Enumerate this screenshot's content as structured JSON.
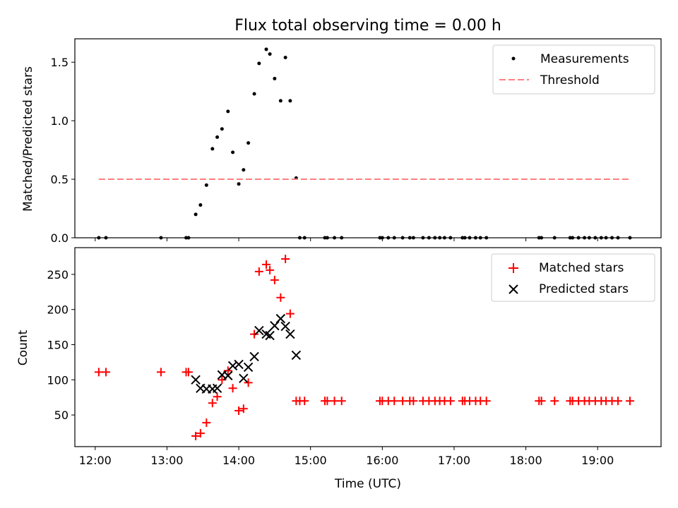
{
  "figure": {
    "title": "Flux total observing time = 0.00 h",
    "xlabel": "Time (UTC)"
  },
  "chart_data": [
    {
      "type": "scatter",
      "ylabel": "Matched/Predicted stars",
      "xlim": [
        "11:43",
        "19:53"
      ],
      "ylim": [
        0,
        1.7
      ],
      "yticks": [
        0.0,
        0.5,
        1.0,
        1.5
      ],
      "ytick_labels": [
        "0.0",
        "0.5",
        "1.0",
        "1.5"
      ],
      "grid": false,
      "legend": "top-right",
      "series": [
        {
          "name": "Measurements",
          "kind": "dots",
          "color": "#000000",
          "points": [
            [
              "12:03",
              0
            ],
            [
              "12:09",
              0
            ],
            [
              "12:55",
              0
            ],
            [
              "13:16",
              0
            ],
            [
              "13:18",
              0
            ],
            [
              "13:24",
              0.2
            ],
            [
              "13:28",
              0.28
            ],
            [
              "13:33",
              0.45
            ],
            [
              "13:38",
              0.76
            ],
            [
              "13:42",
              0.86
            ],
            [
              "13:46",
              0.93
            ],
            [
              "13:51",
              1.08
            ],
            [
              "13:55",
              0.73
            ],
            [
              "14:00",
              0.46
            ],
            [
              "14:04",
              0.58
            ],
            [
              "14:08",
              0.81
            ],
            [
              "14:13",
              1.23
            ],
            [
              "14:17",
              1.49
            ],
            [
              "14:23",
              1.61
            ],
            [
              "14:26",
              1.57
            ],
            [
              "14:30",
              1.36
            ],
            [
              "14:35",
              1.17
            ],
            [
              "14:39",
              1.54
            ],
            [
              "14:43",
              1.17
            ],
            [
              "14:48",
              0.51
            ],
            [
              "14:51",
              0
            ],
            [
              "14:55",
              0
            ],
            [
              "15:12",
              0
            ],
            [
              "15:14",
              0
            ],
            [
              "15:20",
              0
            ],
            [
              "15:26",
              0
            ],
            [
              "15:58",
              0
            ],
            [
              "16:00",
              0
            ],
            [
              "16:05",
              0
            ],
            [
              "16:10",
              0
            ],
            [
              "16:17",
              0
            ],
            [
              "16:23",
              0
            ],
            [
              "16:26",
              0
            ],
            [
              "16:34",
              0
            ],
            [
              "16:39",
              0
            ],
            [
              "16:44",
              0
            ],
            [
              "16:48",
              0
            ],
            [
              "16:52",
              0
            ],
            [
              "16:57",
              0
            ],
            [
              "17:07",
              0
            ],
            [
              "17:09",
              0
            ],
            [
              "17:13",
              0
            ],
            [
              "17:18",
              0
            ],
            [
              "17:22",
              0
            ],
            [
              "17:27",
              0
            ],
            [
              "18:11",
              0
            ],
            [
              "18:13",
              0
            ],
            [
              "18:24",
              0
            ],
            [
              "18:37",
              0
            ],
            [
              "18:39",
              0
            ],
            [
              "18:44",
              0
            ],
            [
              "18:49",
              0
            ],
            [
              "18:53",
              0
            ],
            [
              "18:58",
              0
            ],
            [
              "19:03",
              0
            ],
            [
              "19:07",
              0
            ],
            [
              "19:12",
              0
            ],
            [
              "19:17",
              0
            ],
            [
              "19:27",
              0
            ]
          ]
        },
        {
          "name": "Threshold",
          "kind": "dashed-line",
          "color": "#ff8080",
          "points": [
            [
              "12:03",
              0.5
            ],
            [
              "19:27",
              0.5
            ]
          ]
        }
      ]
    },
    {
      "type": "scatter",
      "ylabel": "Count",
      "xlim": [
        "11:43",
        "19:53"
      ],
      "ylim": [
        5,
        288
      ],
      "yticks": [
        50,
        100,
        150,
        200,
        250
      ],
      "ytick_labels": [
        "50",
        "100",
        "150",
        "200",
        "250"
      ],
      "xticks": [
        "12:00",
        "13:00",
        "14:00",
        "15:00",
        "16:00",
        "17:00",
        "18:00",
        "19:00"
      ],
      "xtick_labels": [
        "12:00",
        "13:00",
        "14:00",
        "15:00",
        "16:00",
        "17:00",
        "18:00",
        "19:00"
      ],
      "grid": false,
      "legend": "top-right",
      "series": [
        {
          "name": "Matched stars",
          "kind": "plus",
          "color": "#ff0000",
          "points": [
            [
              "12:03",
              111
            ],
            [
              "12:09",
              111
            ],
            [
              "12:55",
              111
            ],
            [
              "13:16",
              111
            ],
            [
              "13:18",
              111
            ],
            [
              "13:24",
              20
            ],
            [
              "13:28",
              24
            ],
            [
              "13:33",
              39
            ],
            [
              "13:38",
              67
            ],
            [
              "13:42",
              76
            ],
            [
              "13:46",
              100
            ],
            [
              "13:51",
              113
            ],
            [
              "13:55",
              88
            ],
            [
              "14:00",
              56
            ],
            [
              "14:04",
              59
            ],
            [
              "14:08",
              96
            ],
            [
              "14:13",
              165
            ],
            [
              "14:17",
              254
            ],
            [
              "14:23",
              264
            ],
            [
              "14:26",
              256
            ],
            [
              "14:30",
              242
            ],
            [
              "14:35",
              217
            ],
            [
              "14:39",
              272
            ],
            [
              "14:43",
              194
            ],
            [
              "14:48",
              70
            ],
            [
              "14:51",
              70
            ],
            [
              "14:55",
              70
            ],
            [
              "15:12",
              70
            ],
            [
              "15:14",
              70
            ],
            [
              "15:20",
              70
            ],
            [
              "15:26",
              70
            ],
            [
              "15:58",
              70
            ],
            [
              "16:00",
              70
            ],
            [
              "16:05",
              70
            ],
            [
              "16:10",
              70
            ],
            [
              "16:17",
              70
            ],
            [
              "16:23",
              70
            ],
            [
              "16:26",
              70
            ],
            [
              "16:34",
              70
            ],
            [
              "16:39",
              70
            ],
            [
              "16:44",
              70
            ],
            [
              "16:48",
              70
            ],
            [
              "16:52",
              70
            ],
            [
              "16:57",
              70
            ],
            [
              "17:07",
              70
            ],
            [
              "17:09",
              70
            ],
            [
              "17:13",
              70
            ],
            [
              "17:18",
              70
            ],
            [
              "17:22",
              70
            ],
            [
              "17:27",
              70
            ],
            [
              "18:11",
              70
            ],
            [
              "18:13",
              70
            ],
            [
              "18:24",
              70
            ],
            [
              "18:37",
              70
            ],
            [
              "18:39",
              70
            ],
            [
              "18:44",
              70
            ],
            [
              "18:49",
              70
            ],
            [
              "18:53",
              70
            ],
            [
              "18:58",
              70
            ],
            [
              "19:03",
              70
            ],
            [
              "19:07",
              70
            ],
            [
              "19:12",
              70
            ],
            [
              "19:17",
              70
            ],
            [
              "19:27",
              70
            ]
          ]
        },
        {
          "name": "Predicted stars",
          "kind": "x",
          "color": "#000000",
          "points": [
            [
              "13:24",
              100
            ],
            [
              "13:28",
              88
            ],
            [
              "13:33",
              87
            ],
            [
              "13:38",
              87
            ],
            [
              "13:42",
              88
            ],
            [
              "13:46",
              107
            ],
            [
              "13:51",
              106
            ],
            [
              "13:55",
              120
            ],
            [
              "14:00",
              122
            ],
            [
              "14:04",
              102
            ],
            [
              "14:08",
              118
            ],
            [
              "14:13",
              133
            ],
            [
              "14:17",
              170
            ],
            [
              "14:23",
              165
            ],
            [
              "14:26",
              163
            ],
            [
              "14:30",
              177
            ],
            [
              "14:35",
              187
            ],
            [
              "14:39",
              176
            ],
            [
              "14:43",
              165
            ],
            [
              "14:48",
              135
            ]
          ]
        }
      ]
    }
  ]
}
